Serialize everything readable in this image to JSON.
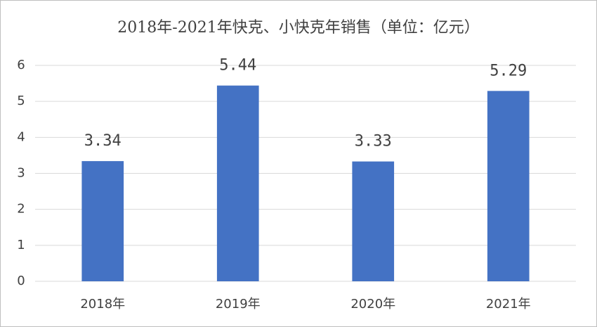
{
  "chart_data": {
    "type": "bar",
    "title": "2018年-2021年快克、小快克年销售（单位：亿元）",
    "categories": [
      "2018年",
      "2019年",
      "2020年",
      "2021年"
    ],
    "values": [
      3.34,
      5.44,
      3.33,
      5.29
    ],
    "color": "#4472c4",
    "ylim": [
      0,
      6
    ],
    "yticks": [
      0,
      1,
      2,
      3,
      4,
      5,
      6
    ],
    "grid": true
  }
}
